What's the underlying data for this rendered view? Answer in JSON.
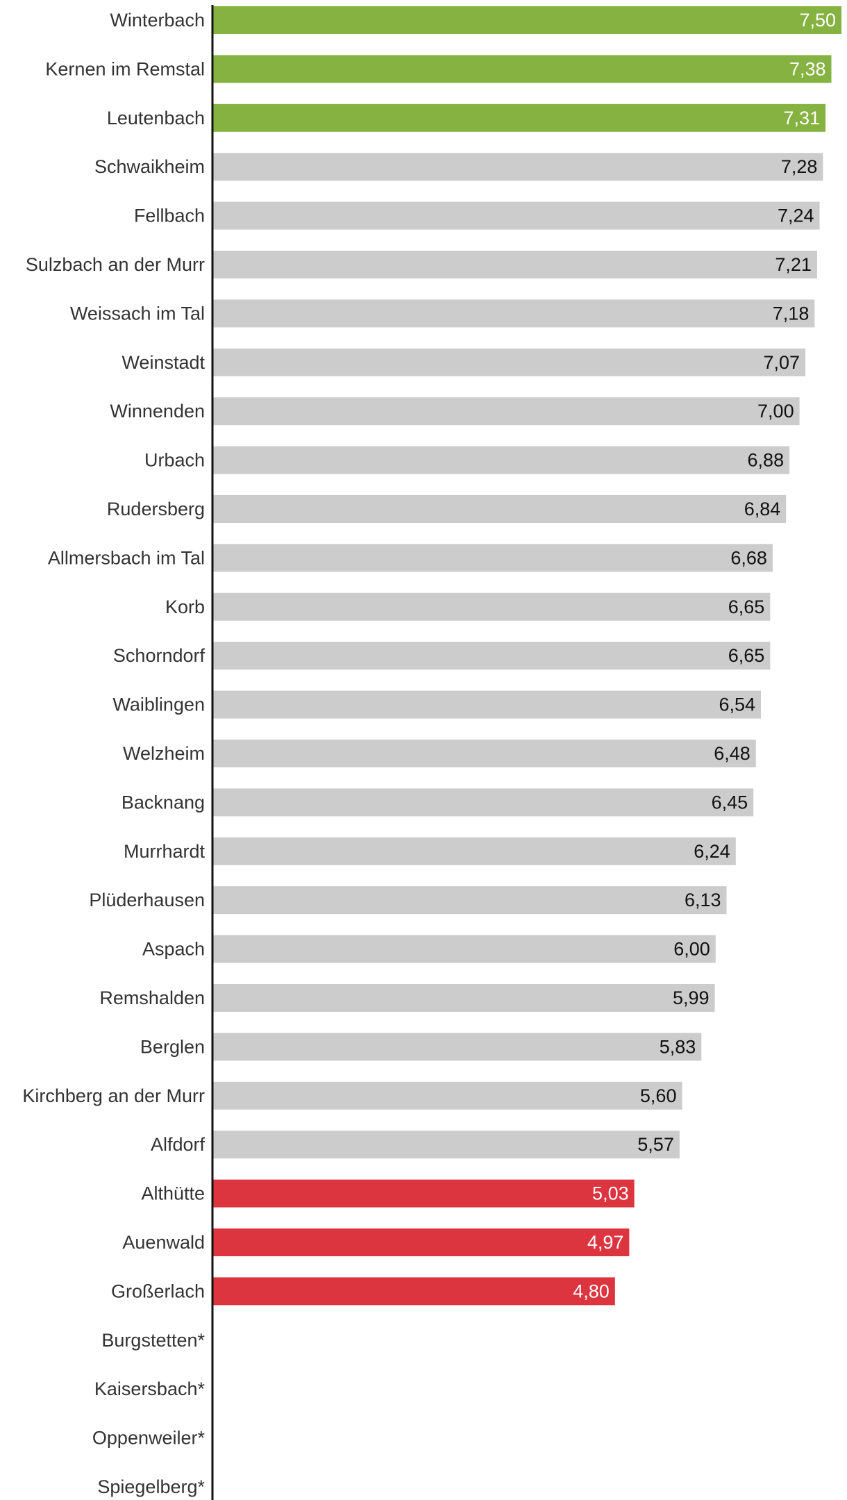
{
  "chart_data": {
    "type": "bar",
    "orientation": "horizontal",
    "categories": [
      "Winterbach",
      "Kernen im Remstal",
      "Leutenbach",
      "Schwaikheim",
      "Fellbach",
      "Sulzbach an der Murr",
      "Weissach im Tal",
      "Weinstadt",
      "Winnenden",
      "Urbach",
      "Rudersberg",
      "Allmersbach im Tal",
      "Korb",
      "Schorndorf",
      "Waiblingen",
      "Welzheim",
      "Backnang",
      "Murrhardt",
      "Plüderhausen",
      "Aspach",
      "Remshalden",
      "Berglen",
      "Kirchberg an der Murr",
      "Alfdorf",
      "Althütte",
      "Auenwald",
      "Großerlach",
      "Burgstetten*",
      "Kaisersbach*",
      "Oppenweiler*",
      "Spiegelberg*"
    ],
    "values": [
      7.5,
      7.38,
      7.31,
      7.28,
      7.24,
      7.21,
      7.18,
      7.07,
      7.0,
      6.88,
      6.84,
      6.68,
      6.65,
      6.65,
      6.54,
      6.48,
      6.45,
      6.24,
      6.13,
      6.0,
      5.99,
      5.83,
      5.6,
      5.57,
      5.03,
      4.97,
      4.8,
      null,
      null,
      null,
      null
    ],
    "value_labels": [
      "7,50",
      "7,38",
      "7,31",
      "7,28",
      "7,24",
      "7,21",
      "7,18",
      "7,07",
      "7,00",
      "6,88",
      "6,84",
      "6,68",
      "6,65",
      "6,65",
      "6,54",
      "6,48",
      "6,45",
      "6,24",
      "6,13",
      "6,00",
      "5,99",
      "5,83",
      "5,60",
      "5,57",
      "5,03",
      "4,97",
      "4,80",
      "",
      "",
      "",
      ""
    ],
    "bar_groups": [
      "top",
      "top",
      "top",
      "middle",
      "middle",
      "middle",
      "middle",
      "middle",
      "middle",
      "middle",
      "middle",
      "middle",
      "middle",
      "middle",
      "middle",
      "middle",
      "middle",
      "middle",
      "middle",
      "middle",
      "middle",
      "middle",
      "middle",
      "middle",
      "bottom",
      "bottom",
      "bottom",
      "none",
      "none",
      "none",
      "none"
    ],
    "colors": {
      "top": "#86b242",
      "middle": "#cccccc",
      "bottom": "#dc3540",
      "label_on_colored": "#ffffff",
      "label_on_gray": "#111111",
      "category_text": "#333333",
      "axis": "#111111"
    },
    "xlim": [
      0,
      7.5
    ],
    "grid": false,
    "legend": "none",
    "title": "",
    "xlabel": "",
    "ylabel": ""
  }
}
